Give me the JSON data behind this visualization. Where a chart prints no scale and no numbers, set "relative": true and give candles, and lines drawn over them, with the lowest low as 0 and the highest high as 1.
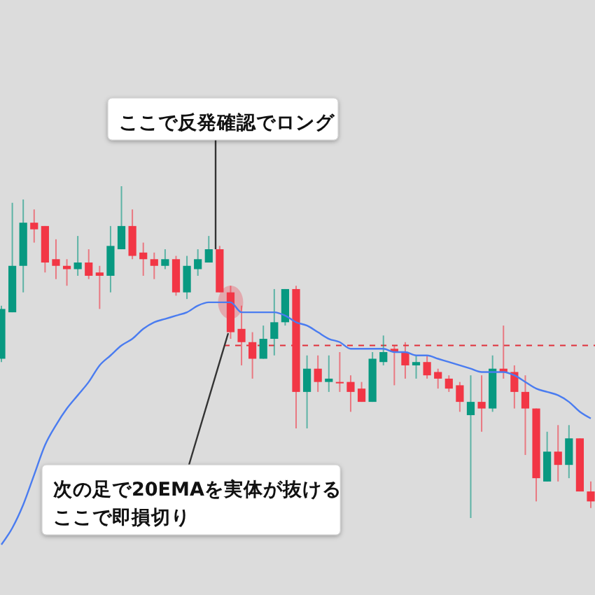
{
  "chart_data": {
    "type": "candlestick",
    "relative": true,
    "categories": [
      null,
      null,
      null,
      null,
      null,
      null,
      null,
      null,
      null,
      null,
      null,
      null,
      null,
      null,
      null,
      null,
      null,
      null,
      null,
      null,
      null,
      null,
      null,
      null,
      null,
      null,
      null,
      null,
      null,
      null,
      null,
      null,
      null,
      null,
      null,
      null,
      null,
      null,
      null,
      null,
      null,
      null,
      null,
      null,
      null,
      null,
      null,
      null,
      null,
      null,
      null,
      null,
      null,
      null,
      null
    ],
    "ohlc": [
      [
        0.48,
        0.64,
        0.47,
        0.63
      ],
      [
        0.62,
        0.95,
        0.62,
        0.76
      ],
      [
        0.76,
        0.96,
        0.68,
        0.89
      ],
      [
        0.89,
        0.93,
        0.83,
        0.87
      ],
      [
        0.88,
        0.88,
        0.74,
        0.77
      ],
      [
        0.78,
        0.84,
        0.72,
        0.76
      ],
      [
        0.76,
        0.78,
        0.7,
        0.75
      ],
      [
        0.75,
        0.85,
        0.73,
        0.77
      ],
      [
        0.77,
        0.81,
        0.72,
        0.73
      ],
      [
        0.74,
        0.76,
        0.63,
        0.73
      ],
      [
        0.73,
        0.88,
        0.68,
        0.82
      ],
      [
        0.81,
        1.0,
        0.81,
        0.88
      ],
      [
        0.88,
        0.93,
        0.78,
        0.79
      ],
      [
        0.8,
        0.83,
        0.73,
        0.78
      ],
      [
        0.78,
        0.8,
        0.72,
        0.76
      ],
      [
        0.76,
        0.81,
        0.75,
        0.78
      ],
      [
        0.78,
        0.79,
        0.67,
        0.68
      ],
      [
        0.68,
        0.79,
        0.66,
        0.76
      ],
      [
        0.75,
        0.81,
        0.73,
        0.78
      ],
      [
        0.77,
        0.85,
        0.77,
        0.81
      ],
      [
        0.81,
        0.82,
        0.68,
        0.68
      ],
      [
        0.68,
        0.7,
        0.54,
        0.56
      ],
      [
        0.57,
        0.64,
        0.46,
        0.53
      ],
      [
        0.53,
        0.56,
        0.42,
        0.48
      ],
      [
        0.48,
        0.58,
        0.48,
        0.54
      ],
      [
        0.54,
        0.69,
        0.49,
        0.59
      ],
      [
        0.59,
        0.69,
        0.58,
        0.69
      ],
      [
        0.69,
        0.7,
        0.27,
        0.38
      ],
      [
        0.38,
        0.49,
        0.27,
        0.45
      ],
      [
        0.45,
        0.49,
        0.38,
        0.41
      ],
      [
        0.41,
        0.49,
        0.38,
        0.42
      ],
      [
        0.41,
        0.5,
        0.38,
        0.41
      ],
      [
        0.41,
        0.43,
        0.32,
        0.38
      ],
      [
        0.39,
        0.41,
        0.35,
        0.35
      ],
      [
        0.35,
        0.5,
        0.35,
        0.48
      ],
      [
        0.47,
        0.55,
        0.46,
        0.5
      ],
      [
        0.51,
        0.52,
        0.4,
        0.5
      ],
      [
        0.5,
        0.53,
        0.42,
        0.46
      ],
      [
        0.46,
        0.49,
        0.42,
        0.47
      ],
      [
        0.47,
        0.49,
        0.42,
        0.43
      ],
      [
        0.44,
        0.45,
        0.39,
        0.42
      ],
      [
        0.42,
        0.43,
        0.38,
        0.39
      ],
      [
        0.4,
        0.41,
        0.32,
        0.35
      ],
      [
        0.31,
        0.43,
        0,
        0.35
      ],
      [
        0.35,
        0.43,
        0.26,
        0.33
      ],
      [
        0.33,
        0.49,
        0.32,
        0.45
      ],
      [
        0.45,
        0.58,
        0.42,
        0.44
      ],
      [
        0.44,
        0.46,
        0.33,
        0.38
      ],
      [
        0.38,
        0.43,
        0.19,
        0.33
      ],
      [
        0.33,
        0.33,
        0.05,
        0.12
      ],
      [
        0.11,
        0.26,
        0.11,
        0.2
      ],
      [
        0.2,
        0.28,
        0.11,
        0.16
      ],
      [
        0.16,
        0.28,
        0.12,
        0.24
      ],
      [
        0.24,
        0.24,
        0.08,
        0.08
      ],
      [
        0.08,
        0.11,
        0.03,
        0.05
      ]
    ],
    "colors": [
      "#089981",
      "#089981",
      "#089981",
      "#f23645",
      "#f23645",
      "#f23645",
      "#f23645",
      "#089981",
      "#f23645",
      "#f23645",
      "#089981",
      "#089981",
      "#f23645",
      "#f23645",
      "#f23645",
      "#089981",
      "#f23645",
      "#089981",
      "#089981",
      "#089981",
      "#f23645",
      "#f23645",
      "#f23645",
      "#f23645",
      "#089981",
      "#089981",
      "#089981",
      "#f23645",
      "#089981",
      "#f23645",
      "#089981",
      "#f23645",
      "#f23645",
      "#f23645",
      "#089981",
      "#089981",
      "#f23645",
      "#f23645",
      "#089981",
      "#f23645",
      "#f23645",
      "#f23645",
      "#f23645",
      "#089981",
      "#f23645",
      "#089981",
      "#f23645",
      "#f23645",
      "#f23645",
      "#f23645",
      "#089981",
      "#f23645",
      "#089981",
      "#f23645",
      "#f23645"
    ],
    "series": [
      {
        "type": "line",
        "color": "#4a7cf0",
        "values": [
          -0.08,
          -0.03,
          0.04,
          0.13,
          0.22,
          0.28,
          0.33,
          0.37,
          0.41,
          0.46,
          0.49,
          0.52,
          0.54,
          0.57,
          0.59,
          0.6,
          0.61,
          0.62,
          0.64,
          0.65,
          0.65,
          0.65,
          0.62,
          0.62,
          0.62,
          0.62,
          0.61,
          0.59,
          0.58,
          0.56,
          0.54,
          0.53,
          0.51,
          0.51,
          0.51,
          0.51,
          0.5,
          0.5,
          0.49,
          0.49,
          0.48,
          0.47,
          0.46,
          0.45,
          0.44,
          0.44,
          0.44,
          0.43,
          0.41,
          0.39,
          0.38,
          0.37,
          0.35,
          0.32,
          0.3
        ]
      }
    ],
    "ref_lines": [
      {
        "axis": "y",
        "value": 0.52,
        "color": "#e0303a",
        "line_style": "dashed"
      }
    ],
    "annotations": [
      "ここで反発確認でロング",
      "次の足で20EMAを実体が抜ける",
      "ここで即損切り"
    ]
  }
}
